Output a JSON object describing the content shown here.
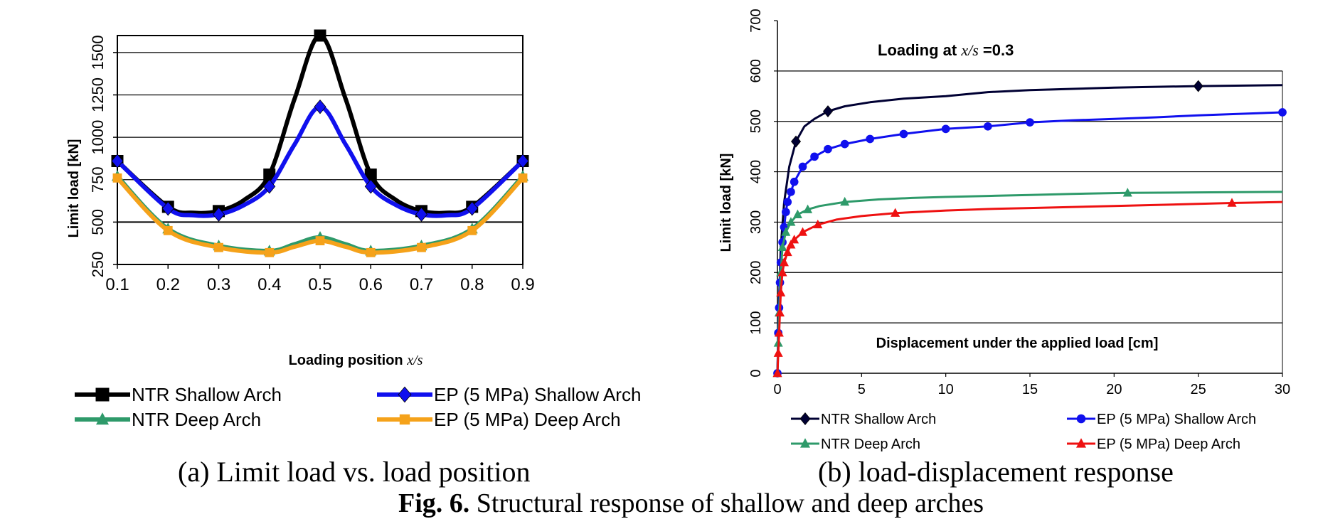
{
  "chart_data": [
    {
      "id": "a",
      "type": "line",
      "title": "",
      "caption": "(a) Limit load vs. load position",
      "xlabel_text": "Loading position",
      "xlabel_var": "x/s",
      "ylabel": "Limit load [kN]",
      "xlim": [
        0.1,
        0.9
      ],
      "ylim": [
        250,
        1600
      ],
      "xticks": [
        0.1,
        0.2,
        0.3,
        0.4,
        0.5,
        0.6,
        0.7,
        0.8,
        0.9
      ],
      "xtick_labels": [
        "0.1",
        "0.2",
        "0.3",
        "0.4",
        "0.5",
        "0.6",
        "0.7",
        "0.8",
        "0.9"
      ],
      "yticks": [
        250,
        500,
        750,
        1000,
        1250,
        1500
      ],
      "ytick_labels": [
        "250",
        "500",
        "750",
        "1000",
        "1250",
        "1500"
      ],
      "grid": true,
      "legend_position": "bottom",
      "series": [
        {
          "name": "NTR Shallow Arch",
          "color": "#000000",
          "marker": "square",
          "x": [
            0.1,
            0.2,
            0.25,
            0.3,
            0.35,
            0.4,
            0.45,
            0.5,
            0.55,
            0.6,
            0.65,
            0.7,
            0.75,
            0.8,
            0.9
          ],
          "y": [
            860,
            590,
            555,
            565,
            630,
            780,
            1230,
            1600,
            1230,
            780,
            630,
            565,
            555,
            590,
            860
          ],
          "marker_x": [
            0.1,
            0.2,
            0.3,
            0.4,
            0.5,
            0.6,
            0.7,
            0.8,
            0.9
          ]
        },
        {
          "name": "EP (5 MPa) Shallow Arch",
          "color": "#1010ee",
          "marker": "diamond",
          "x": [
            0.1,
            0.2,
            0.25,
            0.3,
            0.35,
            0.4,
            0.45,
            0.5,
            0.55,
            0.6,
            0.65,
            0.7,
            0.75,
            0.8,
            0.9
          ],
          "y": [
            860,
            580,
            540,
            545,
            600,
            710,
            960,
            1180,
            960,
            710,
            600,
            545,
            540,
            580,
            860
          ],
          "marker_x": [
            0.1,
            0.2,
            0.3,
            0.4,
            0.5,
            0.6,
            0.7,
            0.8,
            0.9
          ]
        },
        {
          "name": "NTR Deep Arch",
          "color": "#2e9a6a",
          "marker": "triangle",
          "x": [
            0.1,
            0.2,
            0.3,
            0.4,
            0.45,
            0.5,
            0.55,
            0.6,
            0.7,
            0.8,
            0.9
          ],
          "y": [
            770,
            460,
            360,
            330,
            370,
            410,
            370,
            330,
            360,
            460,
            770
          ],
          "marker_x": [
            0.1,
            0.2,
            0.3,
            0.4,
            0.5,
            0.6,
            0.7,
            0.8,
            0.9
          ]
        },
        {
          "name": "EP (5 MPa) Deep Arch",
          "color": "#f5a21a",
          "marker": "square-small",
          "x": [
            0.1,
            0.2,
            0.3,
            0.4,
            0.45,
            0.5,
            0.55,
            0.6,
            0.7,
            0.8,
            0.9
          ],
          "y": [
            760,
            450,
            350,
            320,
            355,
            390,
            355,
            320,
            350,
            450,
            760
          ],
          "marker_x": [
            0.1,
            0.2,
            0.3,
            0.4,
            0.5,
            0.6,
            0.7,
            0.8,
            0.9
          ]
        }
      ]
    },
    {
      "id": "b",
      "type": "line",
      "caption": "(b) load-displacement response",
      "annotation_text": "Loading at",
      "annotation_var": "x/s",
      "annotation_value": "=0.3",
      "xlabel": "Displacement under the applied load [cm]",
      "ylabel": "Limit load [kN]",
      "xlim": [
        0,
        30
      ],
      "ylim": [
        0,
        700
      ],
      "xticks": [
        0,
        5,
        10,
        15,
        20,
        25,
        30
      ],
      "xtick_labels": [
        "0",
        "5",
        "10",
        "15",
        "20",
        "25",
        "30"
      ],
      "yticks": [
        0,
        100,
        200,
        300,
        400,
        500,
        600,
        700
      ],
      "ytick_labels": [
        "0",
        "100",
        "200",
        "300",
        "400",
        "500",
        "600",
        "700"
      ],
      "grid": true,
      "legend_position": "bottom",
      "series": [
        {
          "name": "NTR Shallow Arch",
          "color": "#000033",
          "marker": "diamond",
          "x": [
            0,
            0.1,
            0.2,
            0.4,
            0.7,
            1.1,
            1.6,
            2.2,
            3,
            4,
            5.5,
            7.5,
            10,
            12.5,
            15,
            20,
            25,
            30
          ],
          "y": [
            0,
            150,
            250,
            340,
            410,
            460,
            490,
            505,
            520,
            530,
            538,
            545,
            550,
            558,
            562,
            567,
            570,
            572
          ],
          "marker_x": [
            1.1,
            3,
            25
          ]
        },
        {
          "name": "EP (5 MPa) Shallow Arch",
          "color": "#1010ee",
          "marker": "circle",
          "x": [
            0,
            0.05,
            0.1,
            0.15,
            0.2,
            0.3,
            0.4,
            0.5,
            0.6,
            0.8,
            1.0,
            1.5,
            2.2,
            3,
            4,
            5.5,
            7.5,
            10,
            12.5,
            15,
            17.5,
            20,
            22.5,
            25,
            27.5,
            30
          ],
          "y": [
            0,
            80,
            130,
            180,
            220,
            260,
            290,
            320,
            340,
            360,
            380,
            410,
            430,
            445,
            455,
            465,
            475,
            485,
            490,
            498,
            502,
            505,
            508,
            512,
            515,
            518
          ],
          "marker_x": [
            0,
            0.05,
            0.1,
            0.15,
            0.2,
            0.3,
            0.4,
            0.5,
            0.6,
            0.8,
            1.0,
            1.5,
            2.2,
            3,
            4,
            5.5,
            7.5,
            10,
            12.5,
            15,
            30
          ]
        },
        {
          "name": "NTR Deep Arch",
          "color": "#2e9a6a",
          "marker": "triangle",
          "x": [
            0,
            0.05,
            0.1,
            0.2,
            0.3,
            0.5,
            0.8,
            1.2,
            1.8,
            2.5,
            4,
            6,
            8,
            10,
            12.5,
            15,
            17.5,
            20.8,
            25,
            30
          ],
          "y": [
            0,
            60,
            120,
            200,
            250,
            280,
            300,
            315,
            325,
            332,
            340,
            345,
            348,
            350,
            352,
            354,
            356,
            358,
            359,
            360
          ],
          "marker_x": [
            0,
            0.05,
            0.1,
            0.2,
            0.3,
            0.5,
            0.8,
            1.2,
            1.8,
            4,
            20.8
          ]
        },
        {
          "name": "EP (5 MPa) Deep Arch",
          "color": "#ee1111",
          "marker": "triangle",
          "x": [
            0,
            0.05,
            0.1,
            0.15,
            0.2,
            0.3,
            0.4,
            0.6,
            0.8,
            1.0,
            1.5,
            2.4,
            3.5,
            5,
            7,
            10,
            12.5,
            15,
            20,
            27,
            30
          ],
          "y": [
            0,
            40,
            80,
            120,
            160,
            200,
            220,
            240,
            255,
            265,
            280,
            295,
            305,
            312,
            318,
            323,
            326,
            328,
            332,
            338,
            340
          ],
          "marker_x": [
            0,
            0.05,
            0.1,
            0.15,
            0.2,
            0.3,
            0.4,
            0.6,
            0.8,
            1.0,
            1.5,
            2.4,
            7,
            27
          ]
        }
      ]
    }
  ],
  "captions": {
    "a": "(a) Limit load vs. load position",
    "b": "(b) load-displacement response",
    "figure_label": "Fig. 6.",
    "figure_text": "Structural response of shallow and deep arches"
  }
}
